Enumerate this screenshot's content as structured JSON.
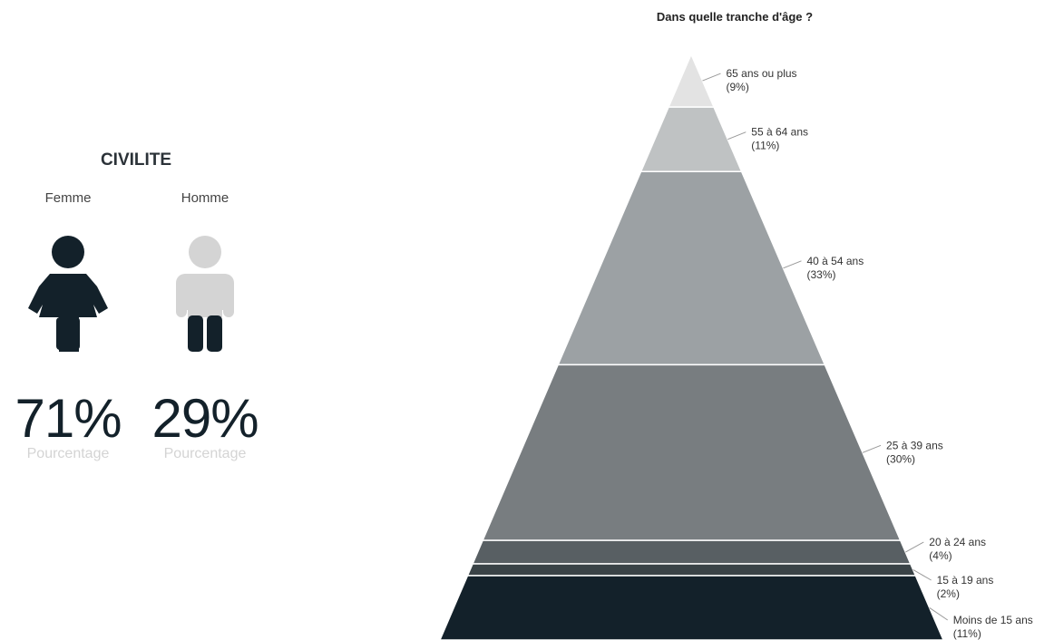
{
  "civilite": {
    "title": "CIVILITE",
    "femme": {
      "label": "Femme",
      "value": "71%",
      "sub": "Pourcentage",
      "color": "#13212a"
    },
    "homme": {
      "label": "Homme",
      "value": "29%",
      "sub": "Pourcentage",
      "color": "#d4d4d4"
    }
  },
  "chart_data": [
    {
      "type": "bar",
      "title": "CIVILITE",
      "categories": [
        "Femme",
        "Homme"
      ],
      "values": [
        71,
        29
      ],
      "unit": "%"
    },
    {
      "type": "pyramid",
      "title": "Dans quelle tranche d'âge ?",
      "segments": [
        {
          "label": "65 ans ou plus",
          "percent": "(9%)",
          "value": 9,
          "color": "#e3e3e3"
        },
        {
          "label": "55 à 64 ans",
          "percent": "(11%)",
          "value": 11,
          "color": "#bfc2c3"
        },
        {
          "label": "40 à 54 ans",
          "percent": "(33%)",
          "value": 33,
          "color": "#9ca1a4"
        },
        {
          "label": "25 à 39 ans",
          "percent": "(30%)",
          "value": 30,
          "color": "#787d80"
        },
        {
          "label": "20 à 24 ans",
          "percent": "(4%)",
          "value": 4,
          "color": "#585f63"
        },
        {
          "label": "15 à 19 ans",
          "percent": "(2%)",
          "value": 2,
          "color": "#3a4347"
        },
        {
          "label": "Moins de 15 ans",
          "percent": "(11%)",
          "value": 11,
          "color": "#13212a"
        }
      ]
    }
  ]
}
